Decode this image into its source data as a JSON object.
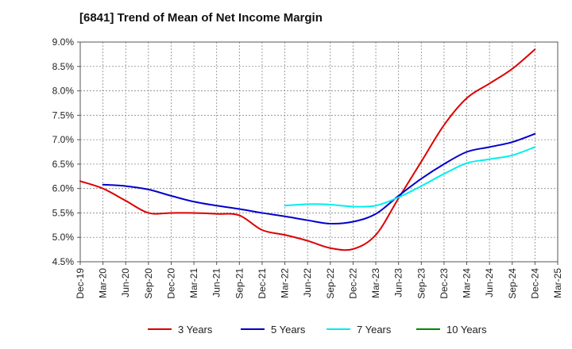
{
  "chart_data": {
    "type": "line",
    "title": "[6841]  Trend of Mean of Net Income Margin",
    "xlabel": "",
    "ylabel": "",
    "x": [
      "Dec-19",
      "Mar-20",
      "Jun-20",
      "Sep-20",
      "Dec-20",
      "Mar-21",
      "Jun-21",
      "Sep-21",
      "Dec-21",
      "Mar-22",
      "Jun-22",
      "Sep-22",
      "Dec-22",
      "Mar-23",
      "Jun-23",
      "Sep-23",
      "Dec-23",
      "Mar-24",
      "Jun-24",
      "Sep-24",
      "Dec-24",
      "Mar-25"
    ],
    "x_tick_labels": [
      "Dec-19",
      "Mar-20",
      "Jun-20",
      "Sep-20",
      "Dec-20",
      "Mar-21",
      "Jun-21",
      "Sep-21",
      "Dec-21",
      "Mar-22",
      "Jun-22",
      "Sep-22",
      "Dec-22",
      "Mar-23",
      "Jun-23",
      "Sep-23",
      "Dec-23",
      "Mar-24",
      "Jun-24",
      "Sep-24",
      "Dec-24",
      "Mar-25"
    ],
    "y_tick_labels": [
      "4.5%",
      "5.0%",
      "5.5%",
      "6.0%",
      "6.5%",
      "7.0%",
      "7.5%",
      "8.0%",
      "8.5%",
      "9.0%"
    ],
    "ylim": [
      4.5,
      9.0
    ],
    "grid": true,
    "grid_style": "dashed",
    "legend_position": "bottom",
    "series": [
      {
        "name": "3 Years",
        "color": "#dd0000",
        "values": [
          6.15,
          6.0,
          5.75,
          5.5,
          5.5,
          5.5,
          5.48,
          5.45,
          5.15,
          5.05,
          4.93,
          4.78,
          4.76,
          5.05,
          5.8,
          6.55,
          7.3,
          7.85,
          8.15,
          8.45,
          8.85,
          null
        ]
      },
      {
        "name": "5 Years",
        "color": "#0000cc",
        "values": [
          null,
          6.08,
          6.05,
          5.98,
          5.85,
          5.73,
          5.65,
          5.58,
          5.5,
          5.43,
          5.35,
          5.28,
          5.32,
          5.48,
          5.85,
          6.2,
          6.5,
          6.75,
          6.85,
          6.95,
          7.12,
          null
        ]
      },
      {
        "name": "7 Years",
        "color": "#00eeee",
        "values": [
          null,
          null,
          null,
          null,
          null,
          null,
          null,
          null,
          null,
          5.65,
          5.68,
          5.67,
          5.63,
          5.65,
          5.82,
          6.05,
          6.3,
          6.52,
          6.6,
          6.68,
          6.85,
          null
        ]
      },
      {
        "name": "10 Years",
        "color": "#008800",
        "values": [
          null,
          null,
          null,
          null,
          null,
          null,
          null,
          null,
          null,
          null,
          null,
          null,
          null,
          null,
          null,
          null,
          null,
          null,
          null,
          null,
          null,
          null
        ]
      }
    ]
  }
}
